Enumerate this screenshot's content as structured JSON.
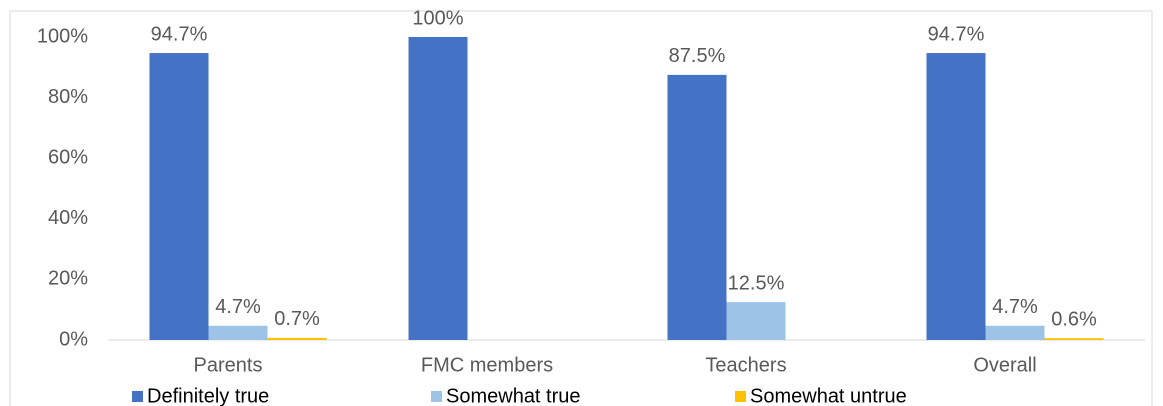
{
  "chart_data": {
    "type": "bar",
    "categories": [
      "Parents",
      "FMC members",
      "Teachers",
      "Overall"
    ],
    "series": [
      {
        "name": "Definitely true",
        "color": "#4472c4",
        "values": [
          94.7,
          100,
          87.5,
          94.7
        ],
        "value_labels": [
          "94.7%",
          "100%",
          "87.5%",
          "94.7%"
        ]
      },
      {
        "name": "Somewhat true",
        "color": "#9dc3e6",
        "values": [
          4.7,
          null,
          12.5,
          4.7
        ],
        "value_labels": [
          "4.7%",
          null,
          "12.5%",
          "4.7%"
        ]
      },
      {
        "name": "Somewhat untrue",
        "color": "#ffc000",
        "values": [
          0.7,
          null,
          null,
          0.6
        ],
        "value_labels": [
          "0.7%",
          null,
          null,
          "0.6%"
        ]
      }
    ],
    "ylim": [
      0,
      100
    ],
    "yticks": [
      {
        "value": 0,
        "label": "0%"
      },
      {
        "value": 20,
        "label": "20%"
      },
      {
        "value": 40,
        "label": "40%"
      },
      {
        "value": 60,
        "label": "60%"
      },
      {
        "value": 80,
        "label": "80%"
      },
      {
        "value": 100,
        "label": "100%"
      }
    ],
    "grid": false,
    "legend": "bottom"
  }
}
